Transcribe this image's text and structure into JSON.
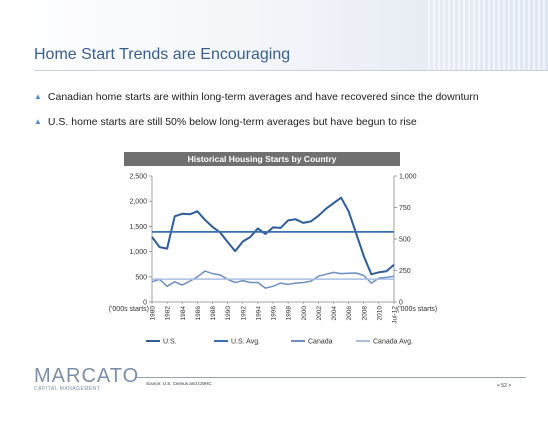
{
  "slide": {
    "title": "Home Start Trends are Encouraging",
    "bullets": [
      "Canadian home starts are within long-term averages and have recovered since the downturn",
      "U.S. home starts are still 50% below long-term averages but have begun to rise"
    ],
    "source": "Source: U.S. Census and CMHC.",
    "page_number": "< 52 >",
    "logo_text": "MARCATO",
    "logo_subtext": "CAPITAL MANAGEMENT"
  },
  "chart_data": {
    "type": "line",
    "title": "Historical Housing Starts by Country",
    "left_axis": {
      "ticks": [
        "0",
        "500",
        "1,000",
        "1,500",
        "2,000",
        "2,500"
      ],
      "ylim": [
        0,
        2500
      ],
      "unit_label": "('000s starts)"
    },
    "right_axis": {
      "ticks": [
        "0",
        "250",
        "500",
        "750",
        "1,000"
      ],
      "ylim": [
        0,
        1000
      ],
      "unit_label": "('000s starts)"
    },
    "x": [
      "1980",
      "1981",
      "1982",
      "1983",
      "1984",
      "1985",
      "1986",
      "1987",
      "1988",
      "1989",
      "1990",
      "1991",
      "1992",
      "1993",
      "1994",
      "1995",
      "1996",
      "1997",
      "1998",
      "1999",
      "2000",
      "2001",
      "2002",
      "2003",
      "2004",
      "2005",
      "2006",
      "2007",
      "2008",
      "2009",
      "2010",
      "2011",
      "Jul-12"
    ],
    "x_tick_labels": [
      "1980",
      "1982",
      "1984",
      "1986",
      "1988",
      "1990",
      "1992",
      "1994",
      "1996",
      "1998",
      "2000",
      "2002",
      "2004",
      "2006",
      "2008",
      "2010",
      "Jul-12"
    ],
    "series": [
      {
        "name": "U.S.",
        "axis": "left",
        "color": "#2e5d99",
        "values": [
          1290,
          1090,
          1060,
          1700,
          1750,
          1740,
          1800,
          1630,
          1490,
          1380,
          1190,
          1010,
          1200,
          1290,
          1460,
          1350,
          1480,
          1470,
          1620,
          1640,
          1570,
          1600,
          1710,
          1850,
          1960,
          2070,
          1800,
          1360,
          910,
          550,
          590,
          610,
          740
        ]
      },
      {
        "name": "U.S. Avg.",
        "axis": "left",
        "color": "#3a6fb0",
        "values": [
          1390,
          1390,
          1390,
          1390,
          1390,
          1390,
          1390,
          1390,
          1390,
          1390,
          1390,
          1390,
          1390,
          1390,
          1390,
          1390,
          1390,
          1390,
          1390,
          1390,
          1390,
          1390,
          1390,
          1390,
          1390,
          1390,
          1390,
          1390,
          1390,
          1390,
          1390,
          1390,
          1390
        ]
      },
      {
        "name": "Canada",
        "axis": "right",
        "color": "#6f8fc4",
        "values": [
          160,
          180,
          125,
          160,
          135,
          165,
          200,
          245,
          225,
          215,
          180,
          155,
          170,
          155,
          155,
          110,
          125,
          150,
          140,
          150,
          155,
          165,
          205,
          220,
          235,
          225,
          228,
          230,
          210,
          150,
          190,
          195,
          205
        ]
      },
      {
        "name": "Canada Avg.",
        "axis": "right",
        "color": "#a9bfe0",
        "values": [
          182,
          182,
          182,
          182,
          182,
          182,
          182,
          182,
          182,
          182,
          182,
          182,
          182,
          182,
          182,
          182,
          182,
          182,
          182,
          182,
          182,
          182,
          182,
          182,
          182,
          182,
          182,
          182,
          182,
          182,
          182,
          182,
          182
        ]
      }
    ],
    "legend_position": "bottom"
  }
}
